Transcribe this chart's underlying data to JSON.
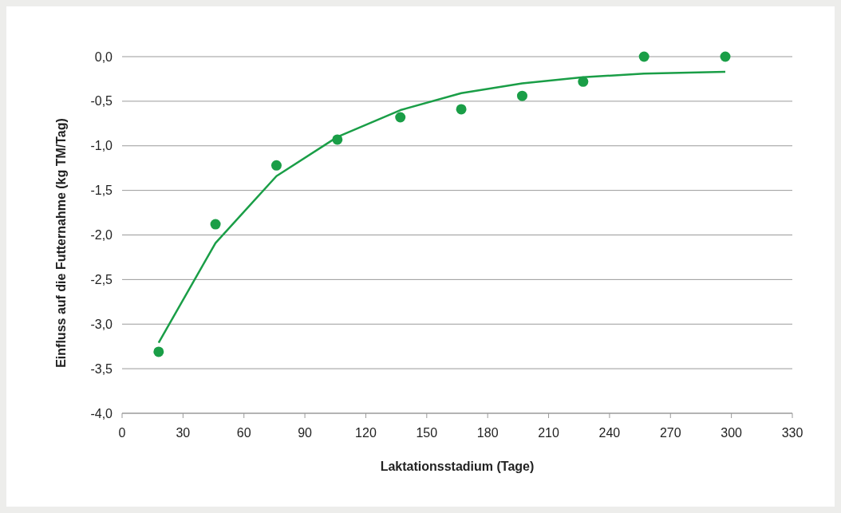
{
  "chart_data": {
    "type": "scatter",
    "xlabel": "Laktationsstadium (Tage)",
    "ylabel": "Einfluss auf die Futternahme (kg TM/Tag)",
    "xlim": [
      0,
      330
    ],
    "xticks": [
      0,
      30,
      60,
      90,
      120,
      150,
      180,
      210,
      240,
      270,
      300,
      330
    ],
    "ylim": [
      -4,
      0
    ],
    "yticks": [
      {
        "value": 0,
        "label": "0,0"
      },
      {
        "value": -0.5,
        "label": "-0,5"
      },
      {
        "value": -1,
        "label": "-1,0"
      },
      {
        "value": -1.5,
        "label": "-1,5"
      },
      {
        "value": -2,
        "label": "-2,0"
      },
      {
        "value": -2.5,
        "label": "-2,5"
      },
      {
        "value": -3,
        "label": "-3,0"
      },
      {
        "value": -3.5,
        "label": "-3,5"
      },
      {
        "value": -4,
        "label": "-4,0"
      }
    ],
    "grid": "y",
    "series": [
      {
        "color": "#1a9e47",
        "marker": "circle",
        "x": [
          18,
          46,
          76,
          106,
          137,
          167,
          197,
          227,
          257,
          297
        ],
        "values": [
          -3.31,
          -1.88,
          -1.22,
          -0.93,
          -0.68,
          -0.59,
          -0.44,
          -0.28,
          0.0,
          0.0
        ]
      },
      {
        "type": "line",
        "color": "#1a9e47",
        "line_style": "solid",
        "x": [
          18,
          46,
          76,
          106,
          137,
          167,
          197,
          227,
          257,
          297
        ],
        "values": [
          -3.21,
          -2.09,
          -1.34,
          -0.9,
          -0.6,
          -0.41,
          -0.3,
          -0.23,
          -0.19,
          -0.17
        ]
      }
    ]
  }
}
